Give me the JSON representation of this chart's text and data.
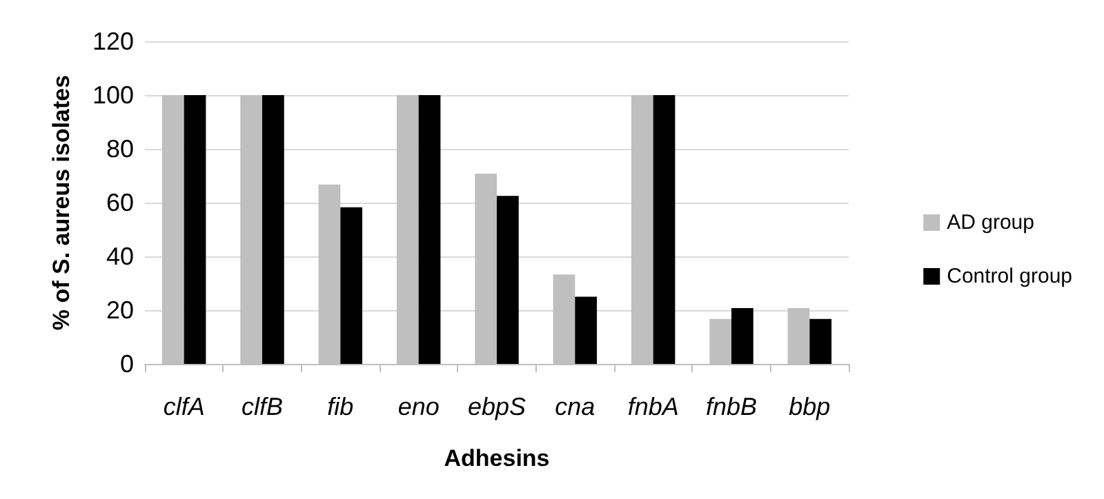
{
  "chart_data": {
    "type": "bar",
    "xlabel": "Adhesins",
    "ylabel": "% of S. aureus isolates",
    "categories": [
      "clfA",
      "clfB",
      "fib",
      "eno",
      "ebpS",
      "cna",
      "fnbA",
      "fnbB",
      "bbp"
    ],
    "series": [
      {
        "name": "AD group",
        "color": "#bfbfbf",
        "values": [
          100,
          100,
          66.7,
          100,
          70.8,
          33.3,
          100,
          16.7,
          20.8
        ]
      },
      {
        "name": "Control group",
        "color": "#000000",
        "values": [
          100,
          100,
          58.3,
          100,
          62.5,
          25,
          100,
          20.8,
          16.7
        ]
      }
    ],
    "ylim": [
      0,
      120
    ],
    "yticks": [
      0,
      20,
      40,
      60,
      80,
      100,
      120
    ],
    "grid": "y",
    "legend": "right"
  }
}
